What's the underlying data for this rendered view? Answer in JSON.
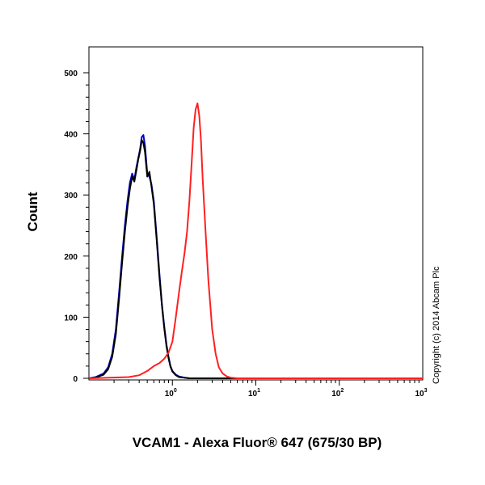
{
  "chart_data": {
    "type": "line",
    "xlabel": "VCAM1 - Alexa Fluor® 647 (675/30 BP)",
    "ylabel": "Count",
    "x_scale": "log",
    "xlim": [
      0.1,
      1000
    ],
    "ylim": [
      0,
      500
    ],
    "x_ticks": [
      {
        "base": "10",
        "exp": "0",
        "value": 1
      },
      {
        "base": "10",
        "exp": "1",
        "value": 10
      },
      {
        "base": "10",
        "exp": "2",
        "value": 100
      },
      {
        "base": "10",
        "exp": "3",
        "value": 1000
      }
    ],
    "y_ticks": [
      0,
      100,
      200,
      300,
      400,
      500
    ],
    "copyright": "Copyright (c) 2014 Abcam Plc",
    "series": [
      {
        "color": "#0000cc",
        "x": [
          0.1,
          0.12,
          0.15,
          0.17,
          0.19,
          0.21,
          0.23,
          0.25,
          0.27,
          0.29,
          0.31,
          0.33,
          0.35,
          0.37,
          0.39,
          0.41,
          0.43,
          0.45,
          0.47,
          0.5,
          0.53,
          0.56,
          0.6,
          0.65,
          0.7,
          0.75,
          0.8,
          0.85,
          0.9,
          0.95,
          1.0,
          1.1,
          1.2,
          1.4,
          1.6,
          1.8,
          2.0,
          3.0,
          1000
        ],
        "y": [
          0,
          2,
          8,
          18,
          40,
          80,
          140,
          200,
          250,
          290,
          320,
          335,
          325,
          345,
          360,
          375,
          395,
          398,
          380,
          335,
          330,
          318,
          290,
          230,
          170,
          120,
          85,
          55,
          35,
          20,
          12,
          6,
          3,
          1,
          0,
          0,
          0,
          0,
          0
        ]
      },
      {
        "color": "#000000",
        "x": [
          0.1,
          0.12,
          0.15,
          0.17,
          0.19,
          0.21,
          0.23,
          0.25,
          0.27,
          0.29,
          0.31,
          0.33,
          0.35,
          0.37,
          0.39,
          0.41,
          0.43,
          0.45,
          0.47,
          0.5,
          0.53,
          0.56,
          0.6,
          0.65,
          0.7,
          0.75,
          0.8,
          0.85,
          0.9,
          0.95,
          1.0,
          1.1,
          1.2,
          1.4,
          1.6,
          1.8,
          2.0,
          3.0,
          1000
        ],
        "y": [
          0,
          1,
          6,
          15,
          35,
          72,
          130,
          190,
          240,
          280,
          310,
          330,
          322,
          340,
          358,
          372,
          390,
          385,
          370,
          330,
          338,
          315,
          285,
          225,
          165,
          118,
          82,
          52,
          33,
          19,
          11,
          5,
          2,
          1,
          0,
          0,
          0,
          0,
          0
        ]
      },
      {
        "color": "#ff2020",
        "x": [
          0.1,
          0.3,
          0.4,
          0.5,
          0.6,
          0.7,
          0.8,
          0.9,
          1.0,
          1.1,
          1.2,
          1.3,
          1.4,
          1.5,
          1.6,
          1.7,
          1.8,
          1.9,
          2.0,
          2.1,
          2.2,
          2.3,
          2.5,
          2.7,
          3.0,
          3.3,
          3.6,
          4.0,
          4.5,
          5.0,
          6.0,
          1000
        ],
        "y": [
          0,
          2,
          5,
          12,
          20,
          25,
          32,
          42,
          60,
          100,
          140,
          175,
          205,
          240,
          290,
          350,
          410,
          440,
          450,
          430,
          390,
          330,
          240,
          160,
          80,
          40,
          18,
          8,
          3,
          1,
          0,
          0
        ]
      }
    ]
  }
}
